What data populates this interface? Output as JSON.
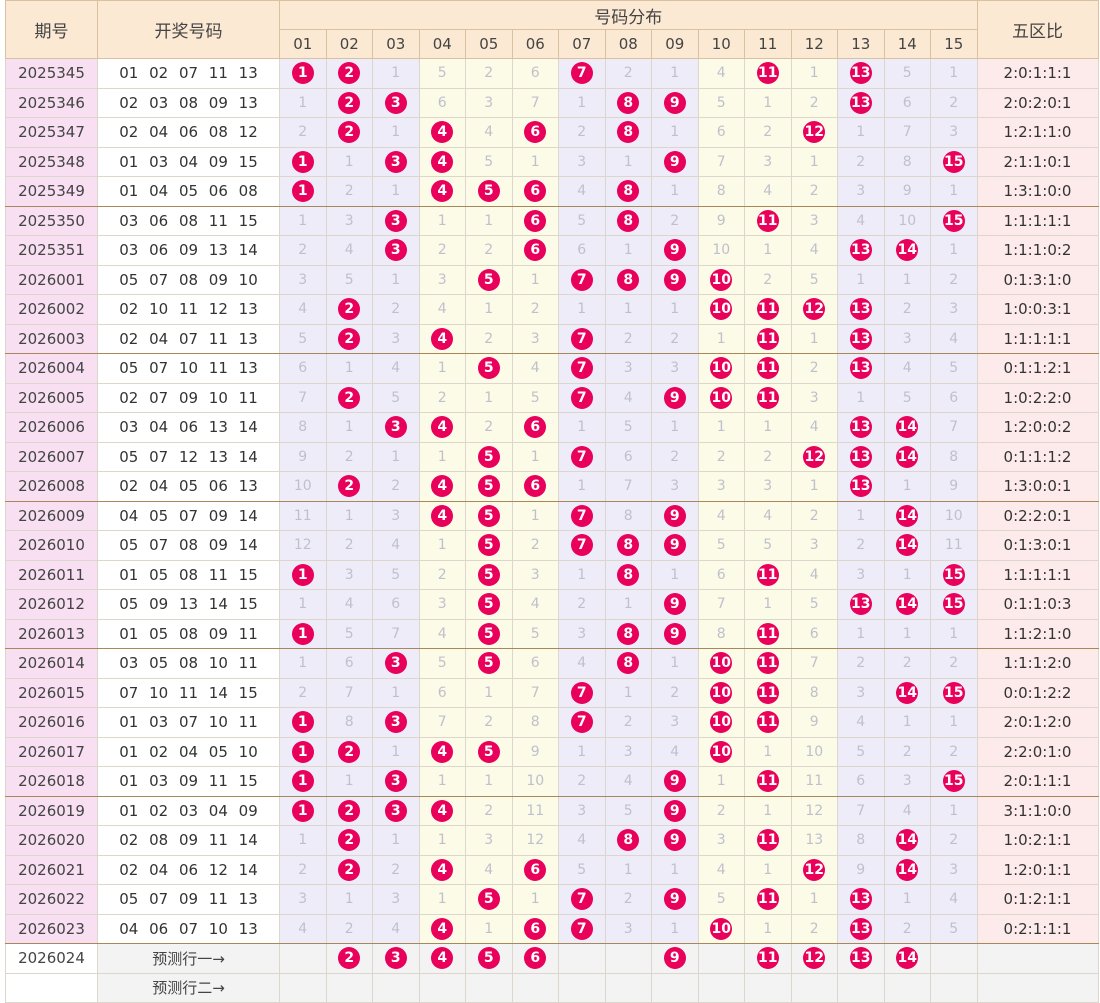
{
  "headers": {
    "period": "期号",
    "draw": "开奖号码",
    "dist": "号码分布",
    "ratio": "五区比"
  },
  "numbers": [
    "01",
    "02",
    "03",
    "04",
    "05",
    "06",
    "07",
    "08",
    "09",
    "10",
    "11",
    "12",
    "13",
    "14",
    "15"
  ],
  "rows": [
    {
      "p": "2025345",
      "d": "01 02 07 11 13",
      "c": [
        "1",
        "2",
        "1",
        "5",
        "2",
        "6",
        "7",
        "2",
        "1",
        "4",
        "11",
        "1",
        "13",
        "5",
        "1"
      ],
      "hit": [
        1,
        2,
        7,
        11,
        13
      ],
      "r": "2:0:1:1:1"
    },
    {
      "p": "2025346",
      "d": "02 03 08 09 13",
      "c": [
        "1",
        "2",
        "3",
        "6",
        "3",
        "7",
        "1",
        "8",
        "9",
        "5",
        "1",
        "2",
        "13",
        "6",
        "2"
      ],
      "hit": [
        2,
        3,
        8,
        9,
        13
      ],
      "r": "2:0:2:0:1"
    },
    {
      "p": "2025347",
      "d": "02 04 06 08 12",
      "c": [
        "2",
        "2",
        "1",
        "4",
        "4",
        "6",
        "2",
        "8",
        "1",
        "6",
        "2",
        "12",
        "1",
        "7",
        "3"
      ],
      "hit": [
        2,
        4,
        6,
        8,
        12
      ],
      "r": "1:2:1:1:0"
    },
    {
      "p": "2025348",
      "d": "01 03 04 09 15",
      "c": [
        "1",
        "1",
        "3",
        "4",
        "5",
        "1",
        "3",
        "1",
        "9",
        "7",
        "3",
        "1",
        "2",
        "8",
        "15"
      ],
      "hit": [
        1,
        3,
        4,
        9,
        15
      ],
      "r": "2:1:1:0:1"
    },
    {
      "p": "2025349",
      "d": "01 04 05 06 08",
      "c": [
        "1",
        "2",
        "1",
        "4",
        "5",
        "6",
        "4",
        "8",
        "1",
        "8",
        "4",
        "2",
        "3",
        "9",
        "1"
      ],
      "hit": [
        1,
        4,
        5,
        6,
        8
      ],
      "r": "1:3:1:0:0"
    },
    {
      "p": "2025350",
      "d": "03 06 08 11 15",
      "c": [
        "1",
        "3",
        "3",
        "1",
        "1",
        "6",
        "5",
        "8",
        "2",
        "9",
        "11",
        "3",
        "4",
        "10",
        "15"
      ],
      "hit": [
        3,
        6,
        8,
        11,
        15
      ],
      "r": "1:1:1:1:1"
    },
    {
      "p": "2025351",
      "d": "03 06 09 13 14",
      "c": [
        "2",
        "4",
        "3",
        "2",
        "2",
        "6",
        "6",
        "1",
        "9",
        "10",
        "1",
        "4",
        "13",
        "14",
        "1"
      ],
      "hit": [
        3,
        6,
        9,
        13,
        14
      ],
      "r": "1:1:1:0:2"
    },
    {
      "p": "2026001",
      "d": "05 07 08 09 10",
      "c": [
        "3",
        "5",
        "1",
        "3",
        "5",
        "1",
        "7",
        "8",
        "9",
        "10",
        "2",
        "5",
        "1",
        "1",
        "2"
      ],
      "hit": [
        5,
        7,
        8,
        9,
        10
      ],
      "r": "0:1:3:1:0"
    },
    {
      "p": "2026002",
      "d": "02 10 11 12 13",
      "c": [
        "4",
        "2",
        "2",
        "4",
        "1",
        "2",
        "1",
        "1",
        "1",
        "10",
        "11",
        "12",
        "13",
        "2",
        "3"
      ],
      "hit": [
        2,
        10,
        11,
        12,
        13
      ],
      "r": "1:0:0:3:1"
    },
    {
      "p": "2026003",
      "d": "02 04 07 11 13",
      "c": [
        "5",
        "2",
        "3",
        "4",
        "2",
        "3",
        "7",
        "2",
        "2",
        "1",
        "11",
        "1",
        "13",
        "3",
        "4"
      ],
      "hit": [
        2,
        4,
        7,
        11,
        13
      ],
      "r": "1:1:1:1:1"
    },
    {
      "p": "2026004",
      "d": "05 07 10 11 13",
      "c": [
        "6",
        "1",
        "4",
        "1",
        "5",
        "4",
        "7",
        "3",
        "3",
        "10",
        "11",
        "2",
        "13",
        "4",
        "5"
      ],
      "hit": [
        5,
        7,
        10,
        11,
        13
      ],
      "r": "0:1:1:2:1"
    },
    {
      "p": "2026005",
      "d": "02 07 09 10 11",
      "c": [
        "7",
        "2",
        "5",
        "2",
        "1",
        "5",
        "7",
        "4",
        "9",
        "10",
        "11",
        "3",
        "1",
        "5",
        "6"
      ],
      "hit": [
        2,
        7,
        9,
        10,
        11
      ],
      "r": "1:0:2:2:0"
    },
    {
      "p": "2026006",
      "d": "03 04 06 13 14",
      "c": [
        "8",
        "1",
        "3",
        "4",
        "2",
        "6",
        "1",
        "5",
        "1",
        "1",
        "1",
        "4",
        "13",
        "14",
        "7"
      ],
      "hit": [
        3,
        4,
        6,
        13,
        14
      ],
      "r": "1:2:0:0:2"
    },
    {
      "p": "2026007",
      "d": "05 07 12 13 14",
      "c": [
        "9",
        "2",
        "1",
        "1",
        "5",
        "1",
        "7",
        "6",
        "2",
        "2",
        "2",
        "12",
        "13",
        "14",
        "8"
      ],
      "hit": [
        5,
        7,
        12,
        13,
        14
      ],
      "r": "0:1:1:1:2"
    },
    {
      "p": "2026008",
      "d": "02 04 05 06 13",
      "c": [
        "10",
        "2",
        "2",
        "4",
        "5",
        "6",
        "1",
        "7",
        "3",
        "3",
        "3",
        "1",
        "13",
        "1",
        "9"
      ],
      "hit": [
        2,
        4,
        5,
        6,
        13
      ],
      "r": "1:3:0:0:1"
    },
    {
      "p": "2026009",
      "d": "04 05 07 09 14",
      "c": [
        "11",
        "1",
        "3",
        "4",
        "5",
        "1",
        "7",
        "8",
        "9",
        "4",
        "4",
        "2",
        "1",
        "14",
        "10"
      ],
      "hit": [
        4,
        5,
        7,
        9,
        14
      ],
      "r": "0:2:2:0:1"
    },
    {
      "p": "2026010",
      "d": "05 07 08 09 14",
      "c": [
        "12",
        "2",
        "4",
        "1",
        "5",
        "2",
        "7",
        "8",
        "9",
        "5",
        "5",
        "3",
        "2",
        "14",
        "11"
      ],
      "hit": [
        5,
        7,
        8,
        9,
        14
      ],
      "r": "0:1:3:0:1"
    },
    {
      "p": "2026011",
      "d": "01 05 08 11 15",
      "c": [
        "1",
        "3",
        "5",
        "2",
        "5",
        "3",
        "1",
        "8",
        "1",
        "6",
        "11",
        "4",
        "3",
        "1",
        "15"
      ],
      "hit": [
        1,
        5,
        8,
        11,
        15
      ],
      "r": "1:1:1:1:1"
    },
    {
      "p": "2026012",
      "d": "05 09 13 14 15",
      "c": [
        "1",
        "4",
        "6",
        "3",
        "5",
        "4",
        "2",
        "1",
        "9",
        "7",
        "1",
        "5",
        "13",
        "14",
        "15"
      ],
      "hit": [
        5,
        9,
        13,
        14,
        15
      ],
      "r": "0:1:1:0:3"
    },
    {
      "p": "2026013",
      "d": "01 05 08 09 11",
      "c": [
        "1",
        "5",
        "7",
        "4",
        "5",
        "5",
        "3",
        "8",
        "9",
        "8",
        "11",
        "6",
        "1",
        "1",
        "1"
      ],
      "hit": [
        1,
        5,
        8,
        9,
        11
      ],
      "r": "1:1:2:1:0"
    },
    {
      "p": "2026014",
      "d": "03 05 08 10 11",
      "c": [
        "1",
        "6",
        "3",
        "5",
        "5",
        "6",
        "4",
        "8",
        "1",
        "10",
        "11",
        "7",
        "2",
        "2",
        "2"
      ],
      "hit": [
        3,
        5,
        8,
        10,
        11
      ],
      "r": "1:1:1:2:0"
    },
    {
      "p": "2026015",
      "d": "07 10 11 14 15",
      "c": [
        "2",
        "7",
        "1",
        "6",
        "1",
        "7",
        "7",
        "1",
        "2",
        "10",
        "11",
        "8",
        "3",
        "14",
        "15"
      ],
      "hit": [
        7,
        10,
        11,
        14,
        15
      ],
      "r": "0:0:1:2:2"
    },
    {
      "p": "2026016",
      "d": "01 03 07 10 11",
      "c": [
        "1",
        "8",
        "3",
        "7",
        "2",
        "8",
        "7",
        "2",
        "3",
        "10",
        "11",
        "9",
        "4",
        "1",
        "1"
      ],
      "hit": [
        1,
        3,
        7,
        10,
        11
      ],
      "r": "2:0:1:2:0"
    },
    {
      "p": "2026017",
      "d": "01 02 04 05 10",
      "c": [
        "1",
        "2",
        "1",
        "4",
        "5",
        "9",
        "1",
        "3",
        "4",
        "10",
        "1",
        "10",
        "5",
        "2",
        "2"
      ],
      "hit": [
        1,
        2,
        4,
        5,
        10
      ],
      "r": "2:2:0:1:0"
    },
    {
      "p": "2026018",
      "d": "01 03 09 11 15",
      "c": [
        "1",
        "1",
        "3",
        "1",
        "1",
        "10",
        "2",
        "4",
        "9",
        "1",
        "11",
        "11",
        "6",
        "3",
        "15"
      ],
      "hit": [
        1,
        3,
        9,
        11,
        15
      ],
      "r": "2:0:1:1:1"
    },
    {
      "p": "2026019",
      "d": "01 02 03 04 09",
      "c": [
        "1",
        "2",
        "3",
        "4",
        "2",
        "11",
        "3",
        "5",
        "9",
        "2",
        "1",
        "12",
        "7",
        "4",
        "1"
      ],
      "hit": [
        1,
        2,
        3,
        4,
        9
      ],
      "r": "3:1:1:0:0"
    },
    {
      "p": "2026020",
      "d": "02 08 09 11 14",
      "c": [
        "1",
        "2",
        "1",
        "1",
        "3",
        "12",
        "4",
        "8",
        "9",
        "3",
        "11",
        "13",
        "8",
        "14",
        "2"
      ],
      "hit": [
        2,
        8,
        9,
        11,
        14
      ],
      "r": "1:0:2:1:1"
    },
    {
      "p": "2026021",
      "d": "02 04 06 12 14",
      "c": [
        "2",
        "2",
        "2",
        "4",
        "4",
        "6",
        "5",
        "1",
        "1",
        "4",
        "1",
        "12",
        "9",
        "14",
        "3"
      ],
      "hit": [
        2,
        4,
        6,
        12,
        14
      ],
      "r": "1:2:0:1:1"
    },
    {
      "p": "2026022",
      "d": "05 07 09 11 13",
      "c": [
        "3",
        "1",
        "3",
        "1",
        "5",
        "1",
        "7",
        "2",
        "9",
        "5",
        "11",
        "1",
        "13",
        "1",
        "4"
      ],
      "hit": [
        5,
        7,
        9,
        11,
        13
      ],
      "r": "0:1:2:1:1"
    },
    {
      "p": "2026023",
      "d": "04 06 07 10 13",
      "c": [
        "4",
        "2",
        "4",
        "4",
        "1",
        "6",
        "7",
        "3",
        "1",
        "10",
        "1",
        "2",
        "13",
        "2",
        "5"
      ],
      "hit": [
        4,
        6,
        7,
        10,
        13
      ],
      "r": "0:2:1:1:1"
    }
  ],
  "predictions": [
    {
      "p": "2026024",
      "label": "预测行一→",
      "balls": [
        2,
        3,
        4,
        5,
        6,
        9,
        11,
        12,
        13,
        14
      ]
    },
    {
      "p": "",
      "label": "预测行二→",
      "balls": []
    }
  ]
}
